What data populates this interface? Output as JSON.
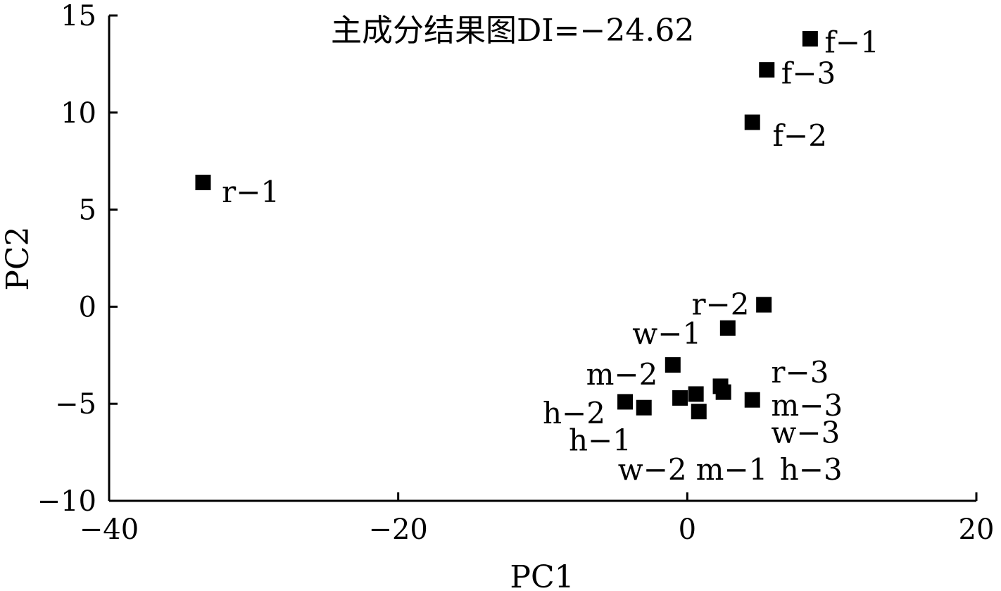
{
  "chart_data": {
    "type": "scatter",
    "title": "主成分结果图DI=−24.62",
    "xlabel": "PC1",
    "ylabel": "PC2",
    "xlim": [
      -40,
      20
    ],
    "ylim": [
      -10,
      15
    ],
    "xticks": [
      -40,
      -20,
      0,
      20
    ],
    "yticks": [
      15,
      10,
      5,
      0,
      -5,
      -10
    ],
    "xtick_labels": [
      "−40",
      "−20",
      "0",
      "20"
    ],
    "ytick_labels": [
      "15",
      "10",
      "5",
      "0",
      "−5",
      "−10"
    ],
    "grid": false,
    "marker_color": "#000000",
    "points": [
      {
        "label": "f−1",
        "x": 8.5,
        "y": 13.8
      },
      {
        "label": "f−3",
        "x": 5.5,
        "y": 12.2
      },
      {
        "label": "f−2",
        "x": 4.5,
        "y": 9.5
      },
      {
        "label": "r−1",
        "x": -33.5,
        "y": 6.4
      },
      {
        "label": "r−2",
        "x": 5.3,
        "y": 0.1
      },
      {
        "label": "w−1",
        "x": 2.8,
        "y": -1.1
      },
      {
        "label": "m−2",
        "x": -1.0,
        "y": -3.0
      },
      {
        "label": "r−3",
        "x": 2.3,
        "y": -4.1
      },
      {
        "label": "m−3",
        "x": 2.5,
        "y": -4.4
      },
      {
        "label": "w−3",
        "x": 4.5,
        "y": -4.8
      },
      {
        "label": "h−2",
        "x": -4.3,
        "y": -4.9
      },
      {
        "label": "h−1",
        "x": -3.0,
        "y": -5.2
      },
      {
        "label": "w−2",
        "x": -0.5,
        "y": -4.7
      },
      {
        "label": "m−1",
        "x": 0.6,
        "y": -4.5
      },
      {
        "label": "h−3",
        "x": 0.8,
        "y": -5.4
      }
    ],
    "annotations": [
      {
        "text": "f−1",
        "x": 9.5,
        "y": 13.6
      },
      {
        "text": "f−3",
        "x": 6.5,
        "y": 12.0
      },
      {
        "text": "f−2",
        "x": 5.9,
        "y": 8.8
      },
      {
        "text": "r−1",
        "x": -32.2,
        "y": 5.9
      },
      {
        "text": "r−2",
        "x": 0.3,
        "y": 0.1
      },
      {
        "text": "w−1",
        "x": -3.8,
        "y": -1.4
      },
      {
        "text": "m−2",
        "x": -7.0,
        "y": -3.5
      },
      {
        "text": "r−3",
        "x": 5.8,
        "y": -3.4
      },
      {
        "text": "m−3",
        "x": 5.8,
        "y": -5.1
      },
      {
        "text": "w−3",
        "x": 5.8,
        "y": -6.5
      },
      {
        "text": "h−2",
        "x": -10.0,
        "y": -5.5
      },
      {
        "text": "h−1",
        "x": -8.2,
        "y": -6.9
      },
      {
        "text": "w−2",
        "x": -4.8,
        "y": -8.4
      },
      {
        "text": "m−1",
        "x": 0.6,
        "y": -8.4
      },
      {
        "text": "h−3",
        "x": 6.4,
        "y": -8.4
      }
    ]
  }
}
